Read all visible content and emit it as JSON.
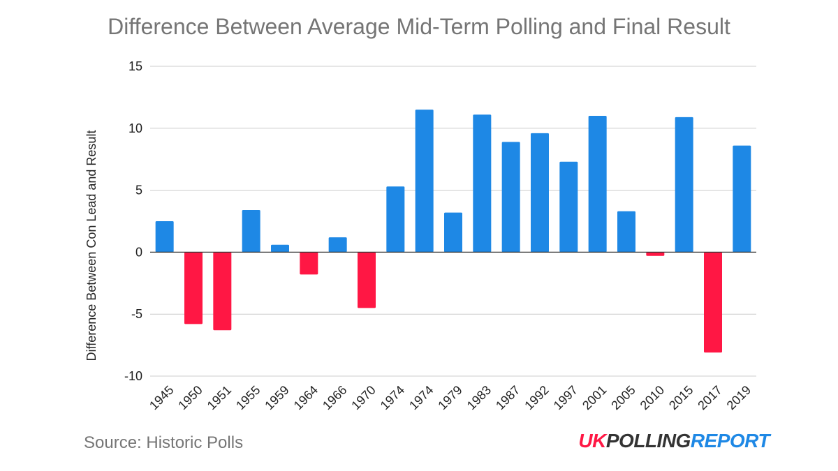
{
  "chart_data": {
    "type": "bar",
    "title": "Difference Between Average Mid-Term Polling and Final Result",
    "ylabel": "Difference Between Con Lead and Result",
    "xlabel": "",
    "ylim": [
      -10,
      15
    ],
    "yticks": [
      15,
      10,
      5,
      0,
      -5,
      -10
    ],
    "grid": true,
    "legend": "none",
    "categories": [
      "1945",
      "1950",
      "1951",
      "1955",
      "1959",
      "1964",
      "1966",
      "1970",
      "1974",
      "1974",
      "1979",
      "1983",
      "1987",
      "1992",
      "1997",
      "2001",
      "2005",
      "2010",
      "2015",
      "2017",
      "2019"
    ],
    "values": [
      2.5,
      -5.8,
      -6.3,
      3.4,
      0.6,
      -1.8,
      1.2,
      -4.5,
      5.3,
      11.5,
      3.2,
      11.1,
      8.9,
      9.6,
      7.3,
      11.0,
      3.3,
      -0.3,
      10.9,
      -8.1,
      8.6
    ],
    "colors": {
      "positive": "#1e88e5",
      "negative": "#ff1744",
      "grid": "#cccccc",
      "axis": "#333333"
    }
  },
  "footer": {
    "source": "Source: Historic Polls",
    "logo_uk": "UK",
    "logo_polling": "POLLING",
    "logo_report": "REPORT"
  }
}
